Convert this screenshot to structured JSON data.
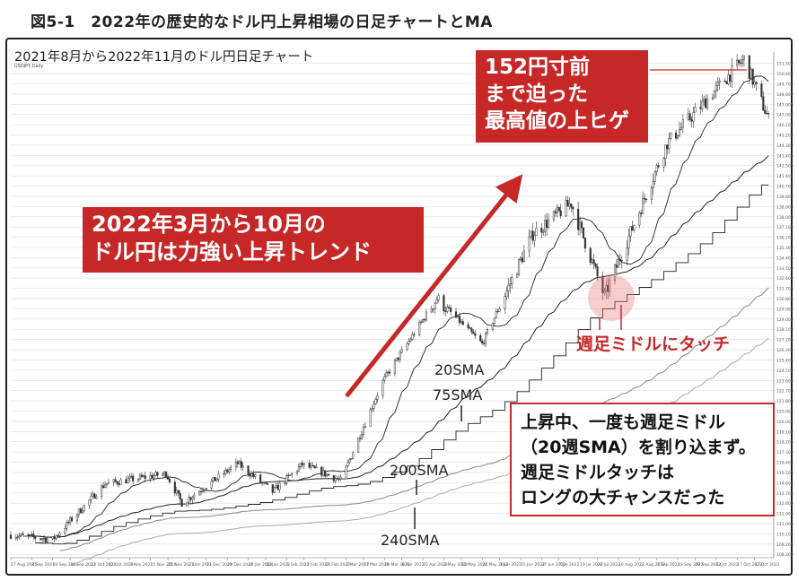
{
  "figure": {
    "caption": "図5-1　2022年の歴史的なドル円上昇相場の日足チャートとMA"
  },
  "chart_header": {
    "title": "2021年8月から2022年11月のドル円日足チャート",
    "symbol": "USDJPY,Daily"
  },
  "annotations": {
    "high_note": [
      "152円寸前",
      "まで迫った",
      "最高値の上ヒゲ"
    ],
    "trend_note": [
      "2022年3月から10月の",
      "ドル円は力強い上昇トレンド"
    ],
    "touch_note": "週足ミドルにタッチ",
    "ma_labels": {
      "sma20": "20SMA",
      "sma75": "75SMA",
      "sma200": "200SMA",
      "sma240": "240SMA"
    },
    "box_note": [
      "上昇中、一度も週足ミドル",
      "（20週SMA）を割り込まず。",
      "週足ミドルタッチは",
      "ロングの大チャンスだった"
    ]
  },
  "colors": {
    "accent": "#c62828",
    "candle": "#333333",
    "ma_line": "#222222",
    "ma_light": "#888888",
    "grid": "#dddddd"
  },
  "chart_data": {
    "type": "candlestick",
    "title": "2021年8月から2022年11月のドル円日足チャート",
    "symbol": "USDJPY,Daily",
    "x_tick_labels": [
      "27 Aug 2021",
      "8 Sep 2021",
      "20 Sep 2021",
      "30 Sep 2021",
      "12 Oct 2021",
      "22 Oct 2021",
      "3 Nov 2021",
      "15 Nov 2021",
      "25 Nov 2021",
      "7 Dec 2021",
      "17 Dec 2021",
      "29 Dec 2021",
      "10 Jan 2022",
      "20 Jan 2022",
      "1 Feb 2022",
      "11 Feb 2022",
      "23 Feb 2022",
      "7 Mar 2022",
      "17 Mar 2022",
      "29 Mar 2022",
      "8 Apr 2022",
      "20 Apr 2022",
      "2 May 2022",
      "12 May 2022",
      "24 May 2022",
      "3 Jun 2022",
      "15 Jun 2022",
      "27 Jun 2022",
      "7 Jul 2022",
      "19 Jul 2022",
      "29 Jul 2022",
      "10 Aug 2022",
      "22 Aug 2022",
      "1 Sep 2022",
      "13 Sep 2022",
      "23 Sep 2022",
      "5 Oct 2022",
      "17 Oct 2022",
      "27 Oct 2022"
    ],
    "ylim": [
      108.0,
      152.5
    ],
    "y_ticks": [
      151.5,
      150.6,
      149.7,
      148.8,
      147.9,
      147.0,
      146.1,
      145.2,
      144.3,
      143.4,
      142.5,
      141.6,
      140.7,
      139.8,
      138.9,
      138.0,
      137.1,
      136.2,
      135.3,
      134.4,
      133.5,
      132.6,
      131.7,
      130.8,
      129.9,
      129.0,
      128.1,
      127.2,
      126.3,
      125.4,
      124.5,
      123.6,
      122.7,
      121.8,
      120.9,
      120.0,
      119.1,
      118.2,
      117.3,
      116.4,
      115.5,
      114.6,
      113.7,
      112.8,
      111.9,
      111.0,
      110.1,
      109.2,
      108.3
    ],
    "trend_anchors": [
      {
        "date": "2021-08-27",
        "close": 110.0
      },
      {
        "date": "2021-09-20",
        "close": 109.6
      },
      {
        "date": "2021-10-20",
        "close": 114.5
      },
      {
        "date": "2021-11-24",
        "close": 115.4
      },
      {
        "date": "2021-12-03",
        "close": 112.8
      },
      {
        "date": "2022-01-04",
        "close": 116.3
      },
      {
        "date": "2022-01-24",
        "close": 113.8
      },
      {
        "date": "2022-02-10",
        "close": 116.2
      },
      {
        "date": "2022-03-04",
        "close": 114.8
      },
      {
        "date": "2022-03-28",
        "close": 123.5
      },
      {
        "date": "2022-04-28",
        "close": 130.8
      },
      {
        "date": "2022-05-24",
        "close": 126.8
      },
      {
        "date": "2022-06-22",
        "close": 136.5
      },
      {
        "date": "2022-07-14",
        "close": 139.2
      },
      {
        "date": "2022-08-02",
        "close": 131.0
      },
      {
        "date": "2022-09-07",
        "close": 144.5
      },
      {
        "date": "2022-10-21",
        "close": 151.9
      },
      {
        "date": "2022-11-04",
        "close": 146.6
      }
    ],
    "series": [
      {
        "name": "20SMA"
      },
      {
        "name": "75SMA"
      },
      {
        "name": "200SMA"
      },
      {
        "name": "240SMA"
      }
    ],
    "annotated_high": 151.9
  }
}
